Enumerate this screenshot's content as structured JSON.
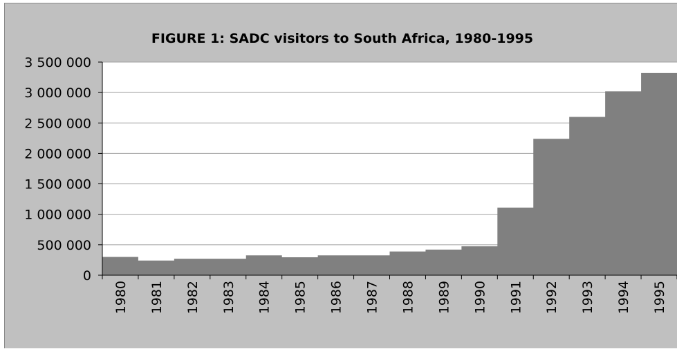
{
  "chart_data": {
    "type": "area",
    "title": "FIGURE 1: SADC visitors to South Africa, 1980-1995",
    "xlabel": "",
    "ylabel": "",
    "categories": [
      "1980",
      "1981",
      "1982",
      "1983",
      "1984",
      "1985",
      "1986",
      "1987",
      "1988",
      "1989",
      "1990",
      "1991",
      "1992",
      "1993",
      "1994",
      "1995"
    ],
    "values": [
      300000,
      240000,
      270000,
      270000,
      325000,
      295000,
      325000,
      325000,
      390000,
      420000,
      475000,
      1110000,
      2240000,
      2600000,
      3020000,
      3320000
    ],
    "ylim": [
      0,
      3500000
    ],
    "yticks": [
      0,
      500000,
      1000000,
      1500000,
      2000000,
      2500000,
      3000000,
      3500000
    ],
    "ytick_labels": [
      "0",
      "500 000",
      "1 000 000",
      "1 500 000",
      "2 000 000",
      "2 500 000",
      "3 000 000",
      "3 500 000"
    ],
    "grid": true,
    "legend": "none",
    "colors": {
      "fill": "#808080",
      "plot_background": "#ffffff",
      "frame_background": "#c0c0c0",
      "gridline": "#a0a0a0"
    }
  }
}
